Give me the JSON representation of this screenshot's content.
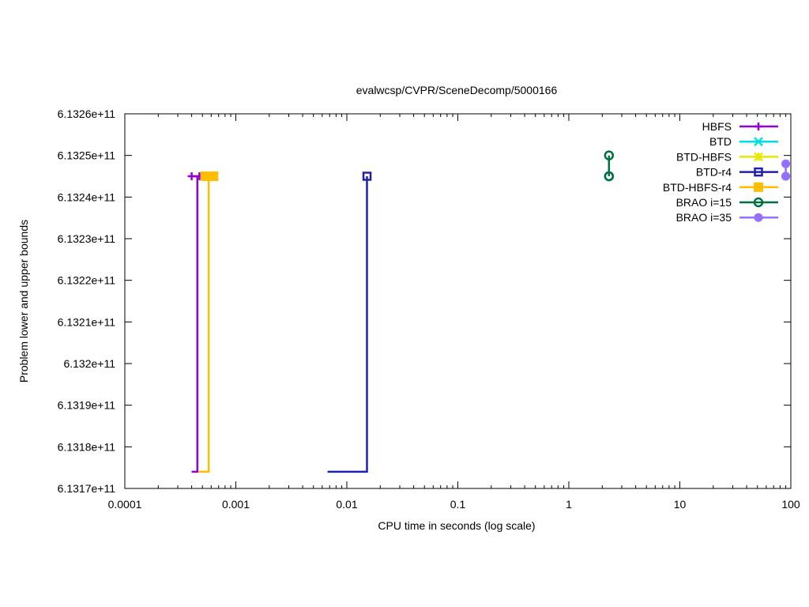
{
  "chart_data": {
    "type": "line",
    "title": "evalwcsp/CVPR/SceneDecomp/5000166",
    "xlabel": "CPU time in seconds (log scale)",
    "ylabel": "Problem lower and upper bounds",
    "x_scale": "log",
    "xlim": [
      0.0001,
      100
    ],
    "ylim": [
      613170000000,
      613260000000
    ],
    "x_ticks": [
      0.0001,
      0.001,
      0.01,
      0.1,
      1,
      10,
      100
    ],
    "x_tick_labels": [
      "0.0001",
      "0.001",
      "0.01",
      "0.1",
      "1",
      "10",
      "100"
    ],
    "y_ticks": [
      613170000000,
      613180000000,
      613190000000,
      613200000000,
      613210000000,
      613220000000,
      613230000000,
      613240000000,
      613250000000,
      613260000000
    ],
    "y_tick_labels": [
      "6.1317e+11",
      "6.1318e+11",
      "6.1319e+11",
      "6.132e+11",
      "6.1321e+11",
      "6.1322e+11",
      "6.1323e+11",
      "6.1324e+11",
      "6.1325e+11",
      "6.1326e+11"
    ],
    "grid": false,
    "legend_position": "top-right",
    "series": [
      {
        "name": "HBFS",
        "color": "#9400d3",
        "marker": "plus",
        "lower": [
          [
            0.0004,
            613174000000
          ],
          [
            0.00045,
            613174000000
          ],
          [
            0.00045,
            613245000000
          ]
        ],
        "upper": [
          [
            0.0004,
            613245000000
          ],
          [
            0.00047,
            613245000000
          ]
        ]
      },
      {
        "name": "BTD",
        "color": "#00e0e0",
        "marker": "cross",
        "lower": [],
        "upper": []
      },
      {
        "name": "BTD-HBFS",
        "color": "#e8e800",
        "marker": "star",
        "lower": [],
        "upper": []
      },
      {
        "name": "BTD-r4",
        "color": "#2020b0",
        "marker": "open-square",
        "lower": [
          [
            0.0067,
            613174000000
          ],
          [
            0.0152,
            613174000000
          ],
          [
            0.0152,
            613245000000
          ]
        ],
        "upper": [
          [
            0.0152,
            613245000000
          ]
        ]
      },
      {
        "name": "BTD-HBFS-r4",
        "color": "#ffbf00",
        "marker": "filled-square",
        "lower": [
          [
            0.00046,
            613174000000
          ],
          [
            0.00057,
            613174000000
          ],
          [
            0.00057,
            613245000000
          ]
        ],
        "upper": [
          [
            0.00053,
            613245000000
          ],
          [
            0.00063,
            613245000000
          ]
        ]
      },
      {
        "name": "BRAO i=15",
        "color": "#007040",
        "marker": "open-circle",
        "lower": [
          [
            2.3,
            613245000000
          ]
        ],
        "upper": [
          [
            2.3,
            613250000000
          ],
          [
            2.3,
            613245000000
          ]
        ]
      },
      {
        "name": "BRAO i=35",
        "color": "#9370ff",
        "marker": "filled-circle",
        "lower": [
          [
            90,
            613245000000
          ]
        ],
        "upper": [
          [
            90,
            613248000000
          ],
          [
            90,
            613245000000
          ]
        ]
      }
    ]
  }
}
